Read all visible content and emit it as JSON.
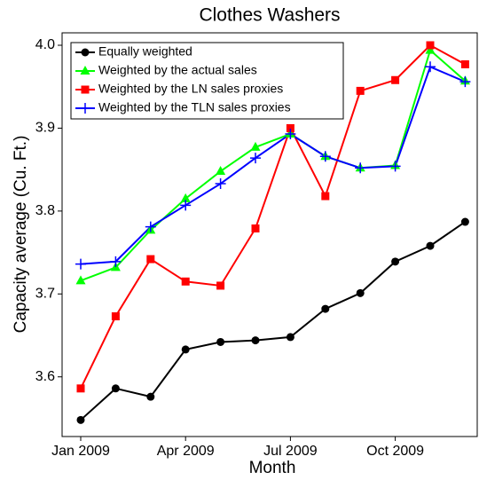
{
  "chart_data": {
    "type": "line",
    "title": "Clothes Washers",
    "x_label": "Month",
    "y_label": "Capacity average (Cu. Ft.)",
    "categories": [
      "Jan 2009",
      null,
      null,
      "Apr 2009",
      null,
      null,
      "Jul 2009",
      null,
      null,
      "Oct 2009",
      null,
      null
    ],
    "ylim": [
      3.528,
      4.015
    ],
    "yticks": [
      3.6,
      3.7,
      3.8,
      3.9,
      {
        "value": 4.0,
        "label": "4.0"
      }
    ],
    "legend": "top-left",
    "series": [
      {
        "name": "Equally weighted",
        "color": "#000000",
        "marker": "circle",
        "values": [
          3.548,
          3.586,
          3.576,
          3.633,
          3.642,
          3.644,
          3.648,
          3.682,
          3.701,
          3.739,
          3.758,
          3.787
        ]
      },
      {
        "name": "Weighted by the actual sales",
        "color": "#00ff00",
        "marker": "triangle",
        "values": [
          3.716,
          3.732,
          3.777,
          3.815,
          3.848,
          3.877,
          3.893,
          3.866,
          3.852,
          3.855,
          3.994,
          3.957
        ]
      },
      {
        "name": "Weighted by the LN sales proxies",
        "color": "#ff0000",
        "marker": "square",
        "values": [
          3.586,
          3.673,
          3.742,
          3.715,
          3.71,
          3.779,
          3.9,
          3.818,
          3.945,
          3.958,
          4.0,
          3.977
        ]
      },
      {
        "name": "Weighted by the TLN sales proxies",
        "color": "#0000ff",
        "marker": "plus",
        "values": [
          3.736,
          3.739,
          3.781,
          3.807,
          3.833,
          3.864,
          3.893,
          3.866,
          3.852,
          3.854,
          3.974,
          3.956
        ]
      }
    ]
  }
}
